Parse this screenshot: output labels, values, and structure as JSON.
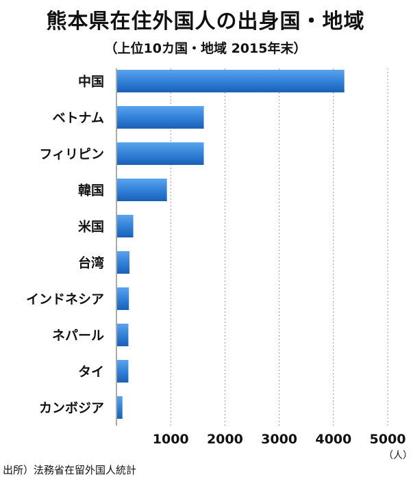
{
  "chart_data": {
    "type": "bar",
    "orientation": "horizontal",
    "title": "熊本県在住外国人の出身国・地域",
    "subtitle": "（上位10カ国・地域 2015年末）",
    "categories": [
      "中国",
      "ベトナム",
      "フィリピン",
      "韓国",
      "米国",
      "台湾",
      "インドネシア",
      "ネパール",
      "タイ",
      "カンボジア"
    ],
    "values": [
      4200,
      1610,
      1610,
      930,
      310,
      240,
      230,
      220,
      220,
      110
    ],
    "xlim": [
      0,
      5000
    ],
    "xticks": [
      1000,
      2000,
      3000,
      4000,
      5000
    ],
    "xunit": "（人）",
    "grid": "vertical-dotted",
    "bar_color": "#2f7fd6",
    "source": "出所）法務省在留外国人統計"
  }
}
